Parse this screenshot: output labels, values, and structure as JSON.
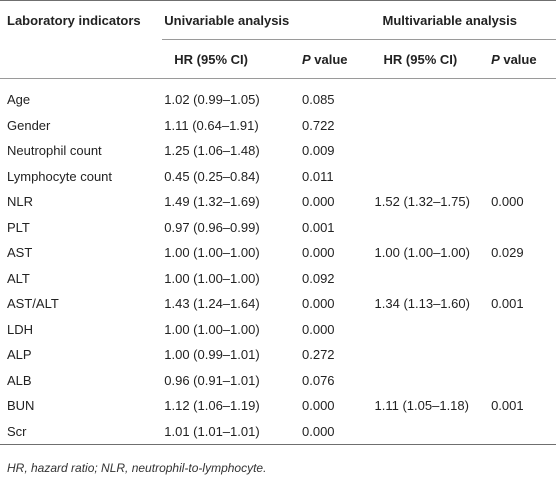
{
  "header": {
    "col_indicator": "Laboratory indicators",
    "group_uni": "Univariable analysis",
    "group_multi": "Multivariable analysis",
    "hr_label": "HR (95% CI)",
    "p_italic": "P",
    "p_rest": " value"
  },
  "rows": [
    {
      "name": "Age",
      "uni_hr": "1.02 (0.99–1.05)",
      "uni_p": "0.085",
      "multi_hr": "",
      "multi_p": ""
    },
    {
      "name": "Gender",
      "uni_hr": "1.11 (0.64–1.91)",
      "uni_p": "0.722",
      "multi_hr": "",
      "multi_p": ""
    },
    {
      "name": "Neutrophil count",
      "uni_hr": "1.25 (1.06–1.48)",
      "uni_p": "0.009",
      "multi_hr": "",
      "multi_p": ""
    },
    {
      "name": "Lymphocyte count",
      "uni_hr": "0.45 (0.25–0.84)",
      "uni_p": "0.011",
      "multi_hr": "",
      "multi_p": ""
    },
    {
      "name": "NLR",
      "uni_hr": "1.49 (1.32–1.69)",
      "uni_p": "0.000",
      "multi_hr": "1.52 (1.32–1.75)",
      "multi_p": "0.000"
    },
    {
      "name": "PLT",
      "uni_hr": "0.97 (0.96–0.99)",
      "uni_p": "0.001",
      "multi_hr": "",
      "multi_p": ""
    },
    {
      "name": "AST",
      "uni_hr": "1.00 (1.00–1.00)",
      "uni_p": "0.000",
      "multi_hr": "1.00 (1.00–1.00)",
      "multi_p": "0.029"
    },
    {
      "name": "ALT",
      "uni_hr": "1.00 (1.00–1.00)",
      "uni_p": "0.092",
      "multi_hr": "",
      "multi_p": ""
    },
    {
      "name": "AST/ALT",
      "uni_hr": "1.43 (1.24–1.64)",
      "uni_p": "0.000",
      "multi_hr": "1.34 (1.13–1.60)",
      "multi_p": "0.001"
    },
    {
      "name": "LDH",
      "uni_hr": "1.00 (1.00–1.00)",
      "uni_p": "0.000",
      "multi_hr": "",
      "multi_p": ""
    },
    {
      "name": "ALP",
      "uni_hr": "1.00 (0.99–1.01)",
      "uni_p": "0.272",
      "multi_hr": "",
      "multi_p": ""
    },
    {
      "name": "ALB",
      "uni_hr": "0.96 (0.91–1.01)",
      "uni_p": "0.076",
      "multi_hr": "",
      "multi_p": ""
    },
    {
      "name": "BUN",
      "uni_hr": "1.12 (1.06–1.19)",
      "uni_p": "0.000",
      "multi_hr": "1.11 (1.05–1.18)",
      "multi_p": "0.001"
    },
    {
      "name": "Scr",
      "uni_hr": "1.01 (1.01–1.01)",
      "uni_p": "0.000",
      "multi_hr": "",
      "multi_p": ""
    }
  ],
  "footnote": "HR, hazard ratio; NLR, neutrophil-to-lymphocyte."
}
